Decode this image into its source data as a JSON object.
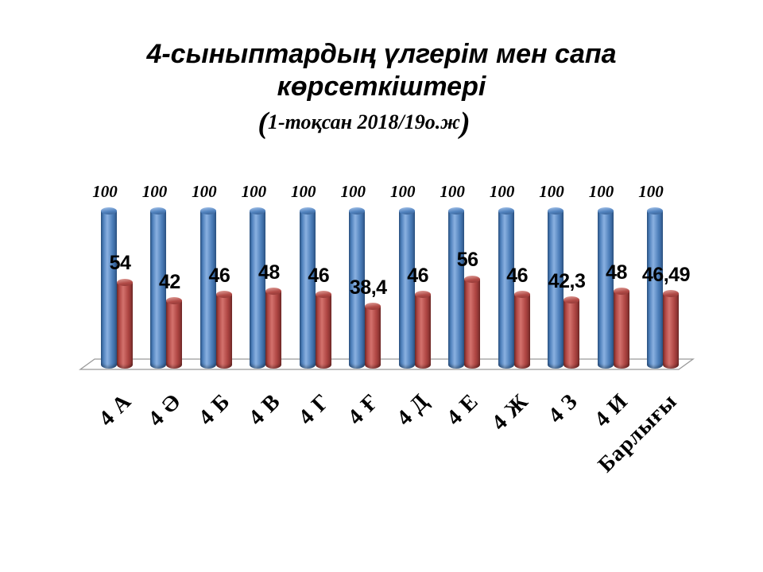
{
  "header": {
    "title_line1": "4-сыныптардың үлгерім мен сапа",
    "title_line2": "көрсеткіштері",
    "subtitle_open": "(",
    "subtitle_body": "1-тоқсан 2018/19о.ж",
    "subtitle_close": ")"
  },
  "colors": {
    "series1": "#4F81BD",
    "series2": "#C0504D",
    "floor_stroke": "#999999",
    "text": "#000000",
    "background": "#FFFFFF"
  },
  "chart_data": {
    "type": "bar",
    "subtype": "3d-cylinder",
    "title": "4-сыныптардың үлгерім мен сапа көрсеткіштері",
    "subtitle": "(1-тоқсан 2018/19о.ж)",
    "categories": [
      "4 А",
      "4 Ә",
      "4 Б",
      "4 В",
      "4 Г",
      "4 Ғ",
      "4 Д",
      "4 Е",
      "4 Ж",
      "4 З",
      "4 И",
      "Барлығы"
    ],
    "series": [
      {
        "color": "#4F81BD",
        "values": [
          100,
          100,
          100,
          100,
          100,
          100,
          100,
          100,
          100,
          100,
          100,
          100
        ],
        "labels": [
          "100",
          "100",
          "100",
          "100",
          "100",
          "100",
          "100",
          "100",
          "100",
          "100",
          "100",
          "100"
        ]
      },
      {
        "color": "#C0504D",
        "values": [
          54,
          42,
          46,
          48,
          46,
          38.4,
          46,
          56,
          46,
          42.3,
          48,
          46.49
        ],
        "labels": [
          "54",
          "42",
          "46",
          "48",
          "46",
          "38,4",
          "46",
          "56",
          "46",
          "42,3",
          "48",
          "46,49"
        ]
      }
    ],
    "ylim": [
      0,
      100
    ],
    "legend": "none",
    "grid": false,
    "data_labels": true
  }
}
